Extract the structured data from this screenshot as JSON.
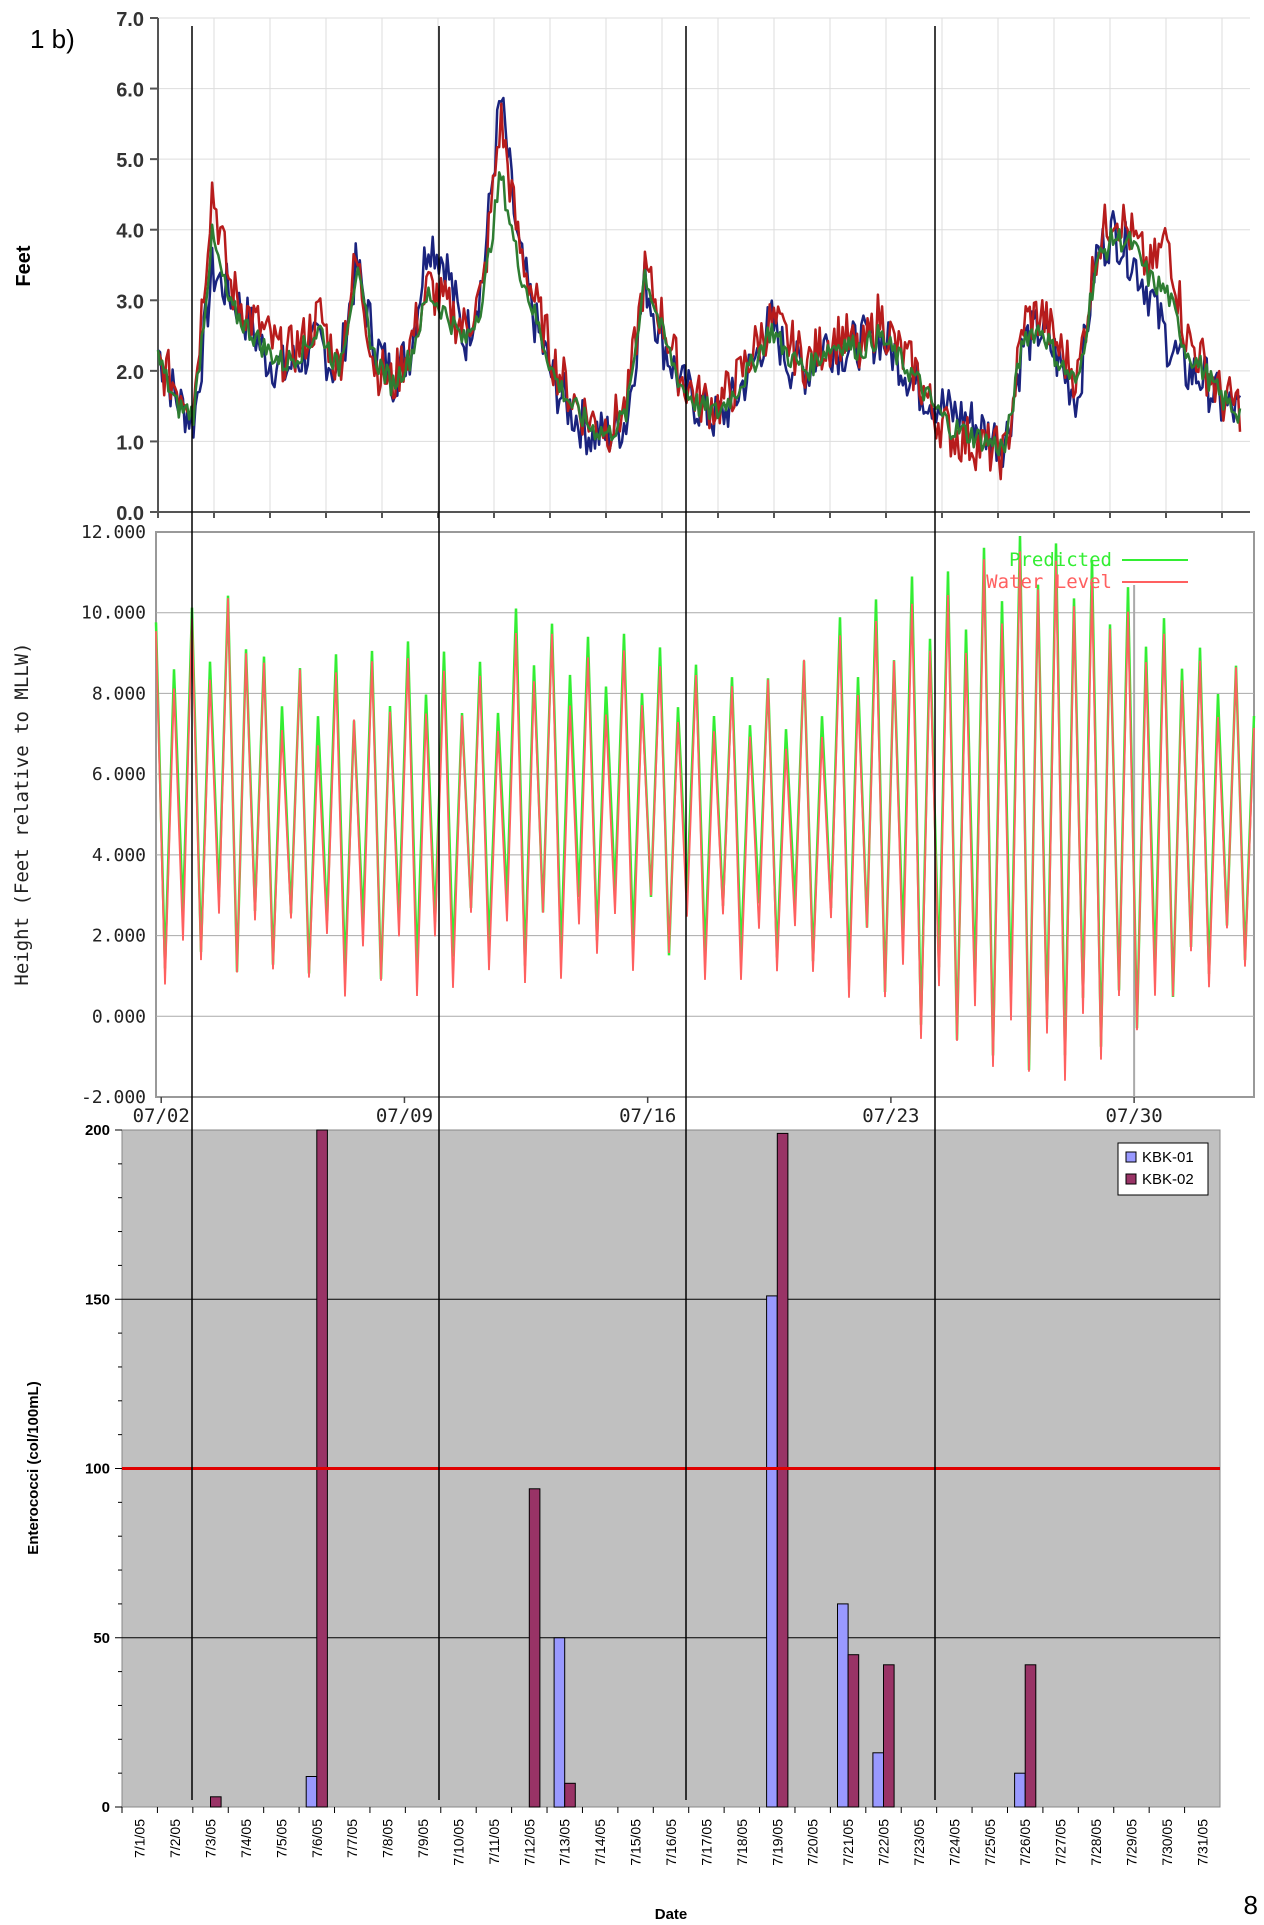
{
  "figure_label": "1 b)",
  "page_number": "8",
  "chart_data": [
    {
      "type": "line",
      "ylabel": "Feet",
      "ylim": [
        0,
        7
      ],
      "yticks": [
        "0.0",
        "1.0",
        "2.0",
        "3.0",
        "4.0",
        "5.0",
        "6.0",
        "7.0"
      ],
      "xlim_days": [
        1,
        32
      ],
      "grid": true,
      "series_colors": [
        "#1a237e",
        "#b71c1c",
        "#2e7d32"
      ],
      "series": [
        {
          "values": [
            2.3,
            1.6,
            1.3,
            3.4,
            3.1,
            2.7,
            2.2,
            2.0,
            2.2,
            2.4,
            1.9,
            3.5,
            2.4,
            1.9,
            2.3,
            3.9,
            3.5,
            2.4,
            3.3,
            5.9,
            3.7,
            2.6,
            1.8,
            1.4,
            1.1,
            1.1,
            1.3,
            3.3,
            2.4,
            1.8,
            1.5,
            1.3,
            1.6,
            2.1,
            2.7,
            2.1,
            2.0,
            2.4,
            2.3,
            2.4,
            2.5,
            2.2,
            1.8,
            1.6,
            1.4,
            1.3,
            1.1,
            1.0,
            2.4,
            2.6,
            2.1,
            1.6,
            3.6,
            4.0,
            3.6,
            3.1,
            2.4,
            2.0,
            1.9,
            1.5,
            1.4
          ]
        },
        {
          "values": [
            2.1,
            1.8,
            1.6,
            4.6,
            3.2,
            2.8,
            2.5,
            2.2,
            2.4,
            2.8,
            2.0,
            3.6,
            2.1,
            1.8,
            2.4,
            3.2,
            2.9,
            2.6,
            3.1,
            5.6,
            3.8,
            2.9,
            2.1,
            1.6,
            1.3,
            1.2,
            1.5,
            3.4,
            2.7,
            1.9,
            1.6,
            1.5,
            1.8,
            2.3,
            2.7,
            2.4,
            2.1,
            2.4,
            2.5,
            2.2,
            2.8,
            2.3,
            2.0,
            1.4,
            1.1,
            1.0,
            0.9,
            0.8,
            2.7,
            2.8,
            2.3,
            1.9,
            3.7,
            4.3,
            3.9,
            3.4,
            3.9,
            2.5,
            2.1,
            1.6,
            1.5
          ]
        },
        {
          "values": [
            2.2,
            1.5,
            1.4,
            3.9,
            2.9,
            2.6,
            2.3,
            2.1,
            2.3,
            2.6,
            2.0,
            3.4,
            2.2,
            1.8,
            2.2,
            3.1,
            2.8,
            2.4,
            3.0,
            4.8,
            3.5,
            2.7,
            1.9,
            1.5,
            1.2,
            1.1,
            1.4,
            3.4,
            2.5,
            1.8,
            1.5,
            1.4,
            1.7,
            2.1,
            2.6,
            2.2,
            2.0,
            2.3,
            2.4,
            2.3,
            2.5,
            2.2,
            1.9,
            1.5,
            1.2,
            1.1,
            1.0,
            0.9,
            2.5,
            2.6,
            2.1,
            1.8,
            3.5,
            3.9,
            3.8,
            3.3,
            3.1,
            2.3,
            2.0,
            1.6,
            1.4
          ]
        }
      ]
    },
    {
      "type": "line",
      "ylabel": "Height (Feet relative to MLLW)",
      "ylim": [
        -2,
        12
      ],
      "yticks": [
        "-2.000",
        "0.000",
        "2.000",
        "4.000",
        "6.000",
        "8.000",
        "10.000",
        "12.000"
      ],
      "xticks": [
        "07/02",
        "07/09",
        "07/16",
        "07/23",
        "07/30"
      ],
      "grid": true,
      "legend": "top-right",
      "series": [
        {
          "name": "Predicted",
          "color": "#33ee33"
        },
        {
          "name": "Water Level",
          "color": "#ff6060"
        }
      ],
      "high_tide_series": [
        9.5,
        9.8,
        10.2,
        8.6,
        8.4,
        8.5,
        8.8,
        8.9,
        8.7,
        8.5,
        9.7,
        9.4,
        9.1,
        9.0,
        8.8,
        8.5,
        8.2,
        8.1,
        8.6,
        9.5,
        10.0,
        10.4,
        10.7,
        11.2,
        11.8,
        11.5,
        10.9,
        10.3,
        9.6,
        8.9,
        8.4,
        9.4
      ],
      "low_tide_series": [
        0.8,
        1.2,
        0.9,
        1.0,
        0.8,
        0.7,
        0.7,
        0.8,
        1.0,
        1.3,
        1.0,
        1.2,
        1.4,
        1.4,
        1.3,
        1.2,
        1.1,
        1.2,
        1.0,
        0.6,
        0.2,
        -0.5,
        -0.9,
        -1.2,
        -1.6,
        -1.3,
        -1.0,
        -0.5,
        0.2,
        0.7,
        1.1,
        1.2
      ]
    },
    {
      "type": "bar",
      "title": "",
      "xlabel": "Date",
      "ylabel": "Enterococci (col/100mL)",
      "ylim": [
        0,
        200
      ],
      "yticks": [
        "0",
        "50",
        "100",
        "150",
        "200"
      ],
      "reference_line": 100,
      "reference_color": "#e00000",
      "legend": "top-right",
      "categories": [
        "7/1/05",
        "7/2/05",
        "7/3/05",
        "7/4/05",
        "7/5/05",
        "7/6/05",
        "7/7/05",
        "7/8/05",
        "7/9/05",
        "7/10/05",
        "7/11/05",
        "7/12/05",
        "7/13/05",
        "7/14/05",
        "7/15/05",
        "7/16/05",
        "7/17/05",
        "7/18/05",
        "7/19/05",
        "7/20/05",
        "7/21/05",
        "7/22/05",
        "7/23/05",
        "7/24/05",
        "7/25/05",
        "7/26/05",
        "7/27/05",
        "7/28/05",
        "7/29/05",
        "7/30/05",
        "7/31/05"
      ],
      "series": [
        {
          "name": "KBK-01",
          "color": "#9999ff",
          "values": [
            0,
            0,
            0,
            0,
            0,
            9,
            0,
            0,
            0,
            0,
            0,
            0,
            50,
            0,
            0,
            0,
            0,
            0,
            151,
            0,
            60,
            16,
            0,
            0,
            0,
            10,
            0,
            0,
            0,
            0,
            0
          ]
        },
        {
          "name": "KBK-02",
          "color": "#993366",
          "values": [
            0,
            0,
            3,
            0,
            0,
            200,
            0,
            0,
            0,
            0,
            0,
            94,
            7,
            0,
            0,
            0,
            0,
            0,
            199,
            0,
            45,
            42,
            0,
            0,
            0,
            42,
            0,
            0,
            0,
            0,
            0
          ]
        }
      ]
    }
  ]
}
